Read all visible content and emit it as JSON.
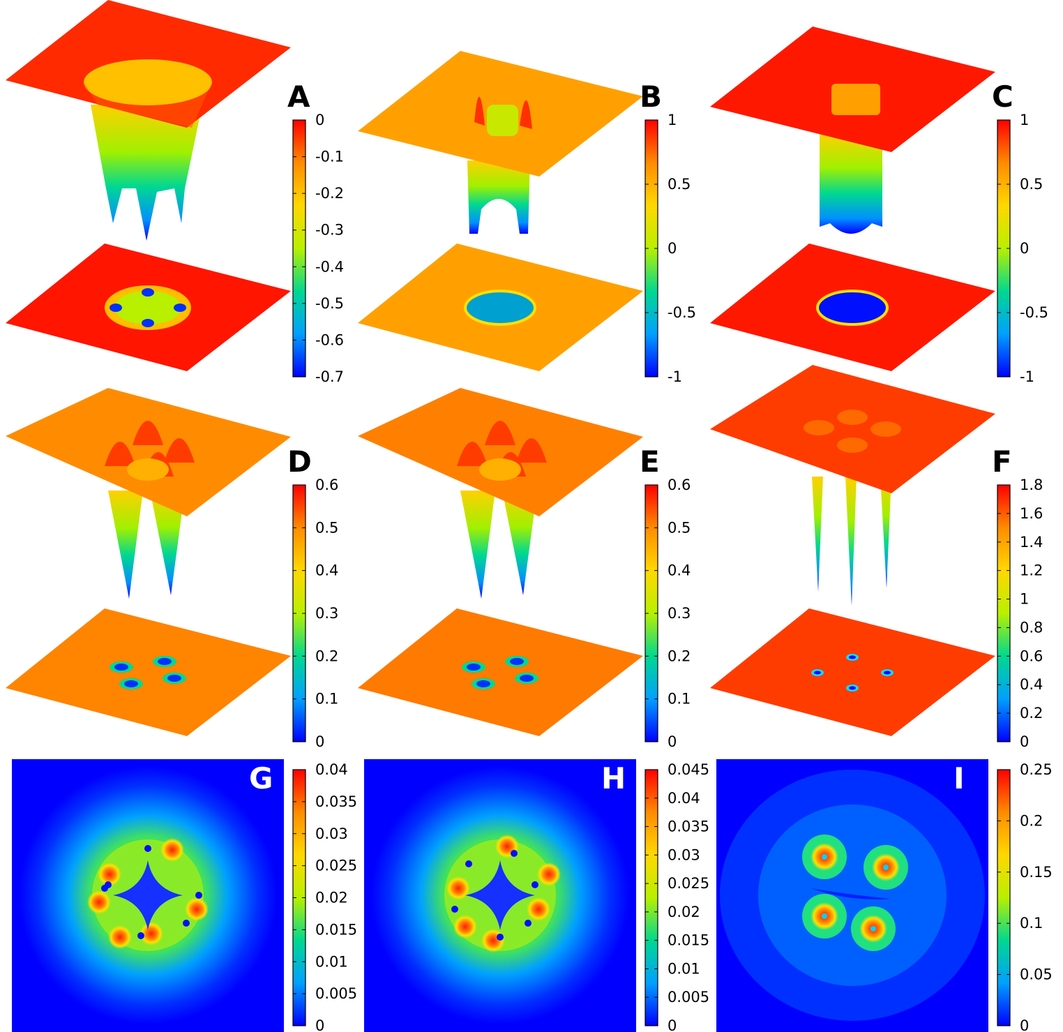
{
  "colorbar_stops": [
    "#0000ff",
    "#00a0ff",
    "#00d890",
    "#b8f000",
    "#ffd800",
    "#ff8c00",
    "#ff0000"
  ],
  "panels": [
    {
      "label": "A",
      "kind": "surface",
      "plane_color": "#ff2a00",
      "lower_plane_color": "#ff1500",
      "colorbar": {
        "ticks": [
          "0",
          "-0.1",
          "-0.2",
          "-0.3",
          "-0.4",
          "-0.5",
          "-0.6",
          "-0.7"
        ],
        "top": 0,
        "bottom": -0.7
      }
    },
    {
      "label": "B",
      "kind": "surface",
      "plane_color": "#ffa000",
      "lower_plane_color": "#ffa000",
      "colorbar": {
        "ticks": [
          "1",
          "0.5",
          "0",
          "-0.5",
          "-1"
        ],
        "top": 1,
        "bottom": -1
      }
    },
    {
      "label": "C",
      "kind": "surface",
      "plane_color": "#ff1800",
      "lower_plane_color": "#ff1800",
      "colorbar": {
        "ticks": [
          "1",
          "0.5",
          "0",
          "-0.5",
          "-1"
        ],
        "top": 1,
        "bottom": -1
      }
    },
    {
      "label": "D",
      "kind": "surface",
      "plane_color": "#ff8c00",
      "lower_plane_color": "#ff8400",
      "colorbar": {
        "ticks": [
          "0.6",
          "0.5",
          "0.4",
          "0.3",
          "0.2",
          "0.1",
          "0"
        ],
        "top": 0.6,
        "bottom": 0
      }
    },
    {
      "label": "E",
      "kind": "surface",
      "plane_color": "#ff8000",
      "lower_plane_color": "#ff7a00",
      "colorbar": {
        "ticks": [
          "0.6",
          "0.5",
          "0.4",
          "0.3",
          "0.2",
          "0.1",
          "0"
        ],
        "top": 0.6,
        "bottom": 0
      }
    },
    {
      "label": "F",
      "kind": "surface",
      "plane_color": "#ff3c00",
      "lower_plane_color": "#ff3c00",
      "colorbar": {
        "ticks": [
          "1.8",
          "1.6",
          "1.4",
          "1.2",
          "1",
          "0.8",
          "0.6",
          "0.4",
          "0.2",
          "0"
        ],
        "top": 1.8,
        "bottom": 0
      }
    },
    {
      "label": "G",
      "kind": "heatmap",
      "colorbar": {
        "ticks": [
          "0.04",
          "0.035",
          "0.03",
          "0.025",
          "0.02",
          "0.015",
          "0.01",
          "0.005",
          "0"
        ],
        "top": 0.04,
        "bottom": 0
      }
    },
    {
      "label": "H",
      "kind": "heatmap",
      "colorbar": {
        "ticks": [
          "0.045",
          "0.04",
          "0.035",
          "0.03",
          "0.025",
          "0.02",
          "0.015",
          "0.01",
          "0.005",
          "0"
        ],
        "top": 0.045,
        "bottom": 0
      }
    },
    {
      "label": "I",
      "kind": "heatmap",
      "colorbar": {
        "ticks": [
          "0.25",
          "0.2",
          "0.15",
          "0.1",
          "0.05",
          "0"
        ],
        "top": 0.25,
        "bottom": 0
      }
    }
  ],
  "chart_data": [
    {
      "type": "heatmap",
      "panel": "A",
      "zlim": [
        -0.7,
        0
      ],
      "description_ticks": [
        "0",
        "-0.1",
        "-0.2",
        "-0.3",
        "-0.4",
        "-0.5",
        "-0.6",
        "-0.7"
      ]
    },
    {
      "type": "heatmap",
      "panel": "B",
      "zlim": [
        -1,
        1
      ],
      "description_ticks": [
        "1",
        "0.5",
        "0",
        "-0.5",
        "-1"
      ]
    },
    {
      "type": "heatmap",
      "panel": "C",
      "zlim": [
        -1,
        1
      ],
      "description_ticks": [
        "1",
        "0.5",
        "0",
        "-0.5",
        "-1"
      ]
    },
    {
      "type": "heatmap",
      "panel": "D",
      "zlim": [
        0,
        0.6
      ],
      "description_ticks": [
        "0.6",
        "0.5",
        "0.4",
        "0.3",
        "0.2",
        "0.1",
        "0"
      ]
    },
    {
      "type": "heatmap",
      "panel": "E",
      "zlim": [
        0,
        0.6
      ],
      "description_ticks": [
        "0.6",
        "0.5",
        "0.4",
        "0.3",
        "0.2",
        "0.1",
        "0"
      ]
    },
    {
      "type": "heatmap",
      "panel": "F",
      "zlim": [
        0,
        1.8
      ],
      "description_ticks": [
        "1.8",
        "1.6",
        "1.4",
        "1.2",
        "1",
        "0.8",
        "0.6",
        "0.4",
        "0.2",
        "0"
      ]
    },
    {
      "type": "heatmap",
      "panel": "G",
      "zlim": [
        0,
        0.04
      ],
      "description_ticks": [
        "0.04",
        "0.035",
        "0.03",
        "0.025",
        "0.02",
        "0.015",
        "0.01",
        "0.005",
        "0"
      ]
    },
    {
      "type": "heatmap",
      "panel": "H",
      "zlim": [
        0,
        0.045
      ],
      "description_ticks": [
        "0.045",
        "0.04",
        "0.035",
        "0.03",
        "0.025",
        "0.02",
        "0.015",
        "0.01",
        "0.005",
        "0"
      ]
    },
    {
      "type": "heatmap",
      "panel": "I",
      "zlim": [
        0,
        0.25
      ],
      "description_ticks": [
        "0.25",
        "0.2",
        "0.15",
        "0.1",
        "0.05",
        "0"
      ]
    }
  ]
}
